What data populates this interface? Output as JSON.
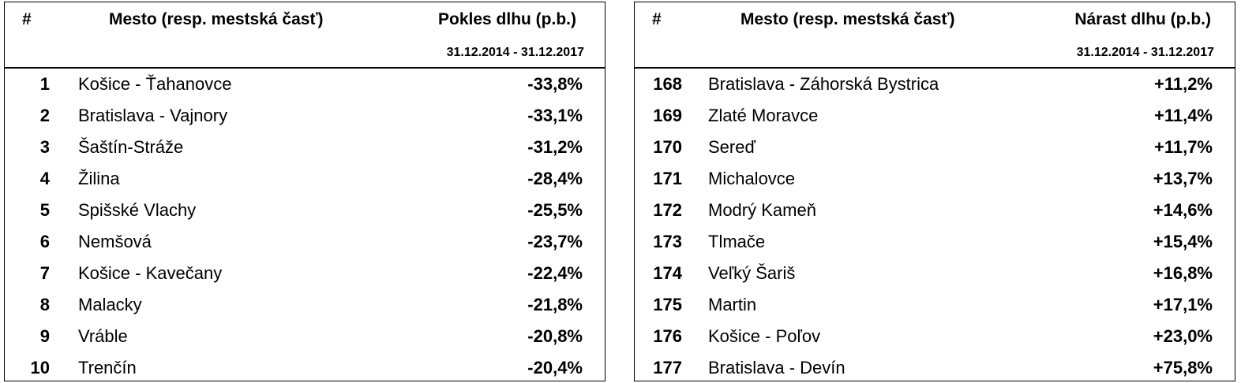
{
  "tables": [
    {
      "headers": [
        "#",
        "Mesto (resp. mestská časť)",
        "Pokles dlhu (p.b.)"
      ],
      "period": "31.12.2014 - 31.12.2017",
      "rows": [
        [
          1,
          "Košice - Ťahanovce",
          "-33,8%"
        ],
        [
          2,
          "Bratislava - Vajnory",
          "-33,1%"
        ],
        [
          3,
          "Šaštín-Stráže",
          "-31,2%"
        ],
        [
          4,
          "Žilina",
          "-28,4%"
        ],
        [
          5,
          "Spišské Vlachy",
          "-25,5%"
        ],
        [
          6,
          "Nemšová",
          "-23,7%"
        ],
        [
          7,
          "Košice - Kavečany",
          "-22,4%"
        ],
        [
          8,
          "Malacky",
          "-21,8%"
        ],
        [
          9,
          "Vráble",
          "-20,8%"
        ],
        [
          10,
          "Trenčín",
          "-20,4%"
        ]
      ]
    },
    {
      "headers": [
        "#",
        "Mesto (resp. mestská časť)",
        "Nárast dlhu (p.b.)"
      ],
      "period": "31.12.2014 - 31.12.2017",
      "rows": [
        [
          168,
          "Bratislava - Záhorská Bystrica",
          "+11,2%"
        ],
        [
          169,
          "Zlaté Moravce",
          "+11,4%"
        ],
        [
          170,
          "Sereď",
          "+11,7%"
        ],
        [
          171,
          "Michalovce",
          "+13,7%"
        ],
        [
          172,
          "Modrý Kameň",
          "+14,6%"
        ],
        [
          173,
          "Tlmače",
          "+15,4%"
        ],
        [
          174,
          "Veľký Šariš",
          "+16,8%"
        ],
        [
          175,
          "Martin",
          "+17,1%"
        ],
        [
          176,
          "Košice - Poľov",
          "+23,0%"
        ],
        [
          177,
          "Bratislava - Devín",
          "+75,8%"
        ]
      ]
    }
  ]
}
